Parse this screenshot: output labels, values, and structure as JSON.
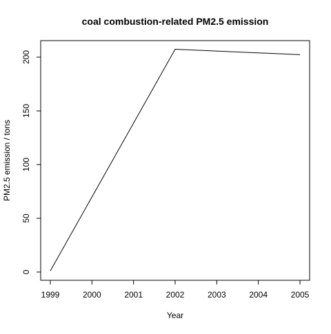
{
  "chart_data": {
    "type": "line",
    "title": "coal combustion-related PM2.5 emission",
    "xlabel": "Year",
    "ylabel": "PM2.5 emission / tons",
    "x": [
      1999,
      2002,
      2005
    ],
    "series": [
      {
        "values": [
          1.1,
          207.4,
          202.3
        ]
      }
    ],
    "xlim": [
      1999,
      2005
    ],
    "ylim": [
      0,
      210
    ],
    "x_ticks": [
      1999,
      2000,
      2001,
      2002,
      2003,
      2004,
      2005
    ],
    "y_ticks": [
      0,
      50,
      100,
      150,
      200
    ],
    "grid": false,
    "line_color": "#000000"
  }
}
